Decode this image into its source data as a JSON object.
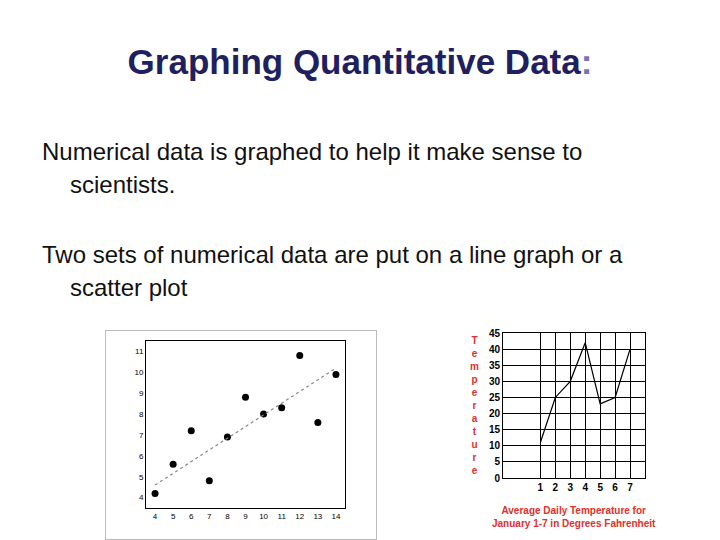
{
  "slide": {
    "title": "Graphing Quantitative Data:",
    "paragraphs": [
      "Numerical data is graphed to help it make sense to scientists.",
      "Two sets of numerical data are put on a line graph or a scatter plot"
    ]
  },
  "chart_data": [
    {
      "type": "scatter",
      "series": [
        {
          "type": "scatter",
          "x": [
            4,
            5,
            6,
            7,
            8,
            9,
            10,
            11,
            12,
            13,
            14
          ],
          "values": [
            4.2,
            5.6,
            7.2,
            4.8,
            6.9,
            8.8,
            8.0,
            8.3,
            10.8,
            7.6,
            9.9
          ],
          "color": "#000000",
          "marker": "circle"
        },
        {
          "type": "line",
          "x": [
            4,
            14
          ],
          "values": [
            4.6,
            10.2
          ],
          "color": "#888888",
          "line_style": "dotted"
        }
      ],
      "xlim": [
        3.5,
        14.5
      ],
      "ylim": [
        3.5,
        11.5
      ],
      "xticks": [
        4,
        5,
        6,
        7,
        8,
        9,
        10,
        11,
        12,
        13,
        14
      ],
      "yticks": [
        4,
        5,
        6,
        7,
        8,
        9,
        10,
        11
      ],
      "grid": false
    },
    {
      "type": "line",
      "title": "Average Daily Temperature for\nJanuary 1-7 in Degrees Fahrenheit",
      "y_label": "Temperature",
      "x": [
        1,
        2,
        3,
        4,
        5,
        6,
        7
      ],
      "values": [
        11,
        25,
        30,
        42,
        23,
        25,
        40
      ],
      "color": "#000000",
      "xlim": [
        -1.5,
        8
      ],
      "ylim": [
        0,
        45
      ],
      "xticks": [
        1,
        2,
        3,
        4,
        5,
        6,
        7
      ],
      "yticks": [
        0,
        5,
        10,
        15,
        20,
        25,
        30,
        35,
        40,
        45
      ],
      "grid": true
    }
  ]
}
